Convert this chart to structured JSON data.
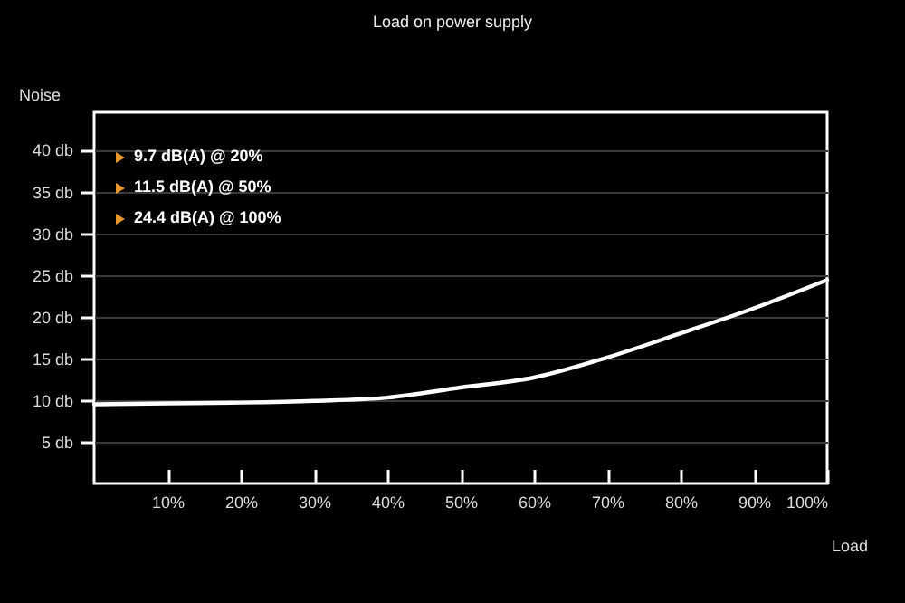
{
  "chart_data": {
    "type": "line",
    "title": "Load on power supply",
    "xlabel": "Load",
    "ylabel": "Noise",
    "x": [
      0,
      10,
      20,
      30,
      40,
      50,
      60,
      70,
      80,
      90,
      100
    ],
    "series": [
      {
        "color": "#ffffff",
        "values": [
          9.5,
          9.6,
          9.7,
          9.9,
          10.3,
          11.5,
          12.7,
          15.1,
          18.0,
          21.0,
          24.4
        ]
      }
    ],
    "xlim": [
      0,
      100
    ],
    "ylim": [
      0,
      44.5
    ],
    "xticks": [
      {
        "value": 10,
        "label": "10%"
      },
      {
        "value": 20,
        "label": "20%"
      },
      {
        "value": 30,
        "label": "30%"
      },
      {
        "value": 40,
        "label": "40%"
      },
      {
        "value": 50,
        "label": "50%"
      },
      {
        "value": 60,
        "label": "60%"
      },
      {
        "value": 70,
        "label": "70%"
      },
      {
        "value": 80,
        "label": "80%"
      },
      {
        "value": 90,
        "label": "90%"
      },
      {
        "value": 100,
        "label": "100%"
      }
    ],
    "yticks": [
      {
        "value": 5,
        "label": "5 db"
      },
      {
        "value": 10,
        "label": "10 db"
      },
      {
        "value": 15,
        "label": "15 db"
      },
      {
        "value": 20,
        "label": "20 db"
      },
      {
        "value": 25,
        "label": "25 db"
      },
      {
        "value": 30,
        "label": "30 db"
      },
      {
        "value": 35,
        "label": "35 db"
      },
      {
        "value": 40,
        "label": "40 db"
      }
    ],
    "grid": "y",
    "marker": "none",
    "line_style": "solid",
    "annotations": [
      "9.7 dB(A) @ 20%",
      "11.5 dB(A) @ 50%",
      "24.4 dB(A) @ 100%"
    ]
  }
}
